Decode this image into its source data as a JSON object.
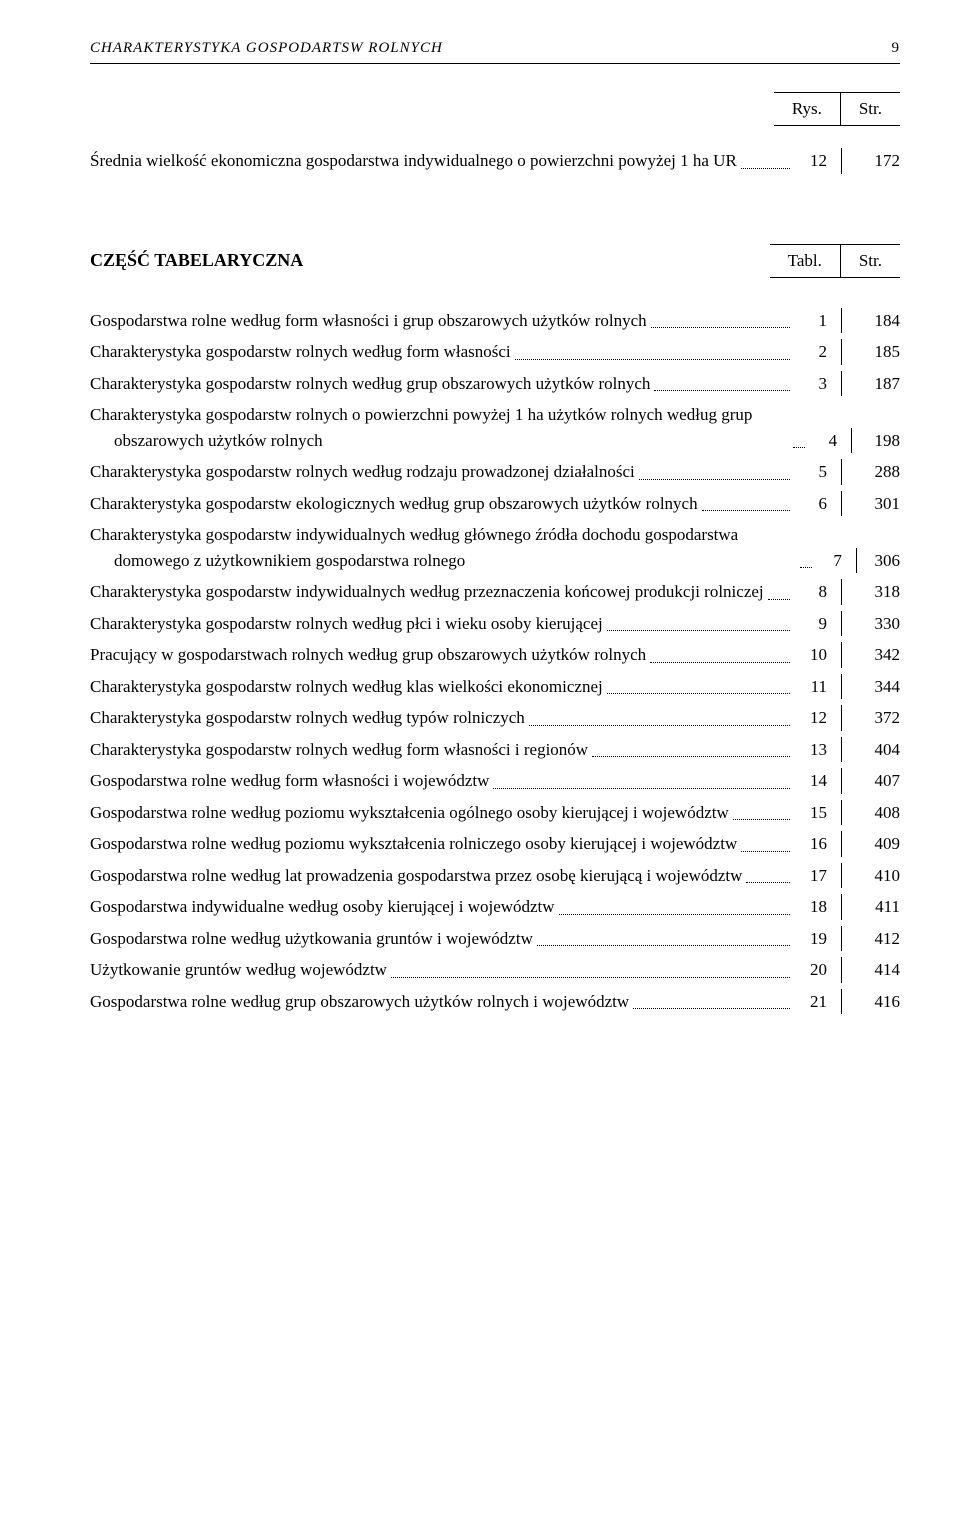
{
  "running_header": {
    "title": "CHARAKTERYSTYKA  GOSPODARTSW  ROLNYCH",
    "page": "9"
  },
  "section1_cols": {
    "c1": "Rys.",
    "c2": "Str."
  },
  "section1_rows": [
    {
      "text": "Średnia wielkość ekonomiczna gospodarstwa indywidualnego o powierzchni powyżej 1 ha UR",
      "c1": "12",
      "c2": "172"
    }
  ],
  "section2": {
    "heading": "CZĘŚĆ TABELARYCZNA",
    "cols": {
      "c1": "Tabl.",
      "c2": "Str."
    }
  },
  "section2_rows": [
    {
      "text": "Gospodarstwa rolne według form własności i grup obszarowych użytków rolnych",
      "c1": "1",
      "c2": "184"
    },
    {
      "text": "Charakterystyka gospodarstw rolnych według form własności",
      "c1": "2",
      "c2": "185"
    },
    {
      "text": "Charakterystyka gospodarstw rolnych według grup obszarowych użytków rolnych",
      "c1": "3",
      "c2": "187"
    },
    {
      "text": "Charakterystyka gospodarstw rolnych o powierzchni powyżej 1 ha użytków rolnych według grup obszarowych użytków rolnych",
      "c1": "4",
      "c2": "198"
    },
    {
      "text": "Charakterystyka gospodarstw rolnych według rodzaju prowadzonej działalności",
      "c1": "5",
      "c2": "288"
    },
    {
      "text": "Charakterystyka gospodarstw ekologicznych według grup obszarowych użytków rolnych",
      "c1": "6",
      "c2": "301"
    },
    {
      "text": "Charakterystyka gospodarstw indywidualnych według głównego źródła dochodu gospodarstwa domowego z użytkownikiem gospodarstwa rolnego",
      "c1": "7",
      "c2": "306"
    },
    {
      "text": "Charakterystyka gospodarstw indywidualnych według przeznaczenia końcowej produkcji rolniczej",
      "c1": "8",
      "c2": "318"
    },
    {
      "text": "Charakterystyka gospodarstw rolnych według płci i wieku osoby kierującej",
      "c1": "9",
      "c2": "330"
    },
    {
      "text": "Pracujący w gospodarstwach rolnych według grup obszarowych użytków rolnych",
      "c1": "10",
      "c2": "342"
    },
    {
      "text": "Charakterystyka gospodarstw rolnych według klas wielkości ekonomicznej",
      "c1": "11",
      "c2": "344"
    },
    {
      "text": "Charakterystyka gospodarstw rolnych według typów rolniczych",
      "c1": "12",
      "c2": "372"
    },
    {
      "text": "Charakterystyka gospodarstw rolnych według form własności i regionów",
      "c1": "13",
      "c2": "404"
    },
    {
      "text": "Gospodarstwa rolne według form własności i województw",
      "c1": "14",
      "c2": "407"
    },
    {
      "text": "Gospodarstwa rolne według poziomu wykształcenia ogólnego osoby kierującej i województw",
      "c1": "15",
      "c2": "408"
    },
    {
      "text": "Gospodarstwa rolne według poziomu wykształcenia rolniczego osoby kierującej i województw",
      "c1": "16",
      "c2": "409"
    },
    {
      "text": "Gospodarstwa rolne według lat prowadzenia gospodarstwa przez osobę kierującą i województw",
      "c1": "17",
      "c2": "410"
    },
    {
      "text": "Gospodarstwa indywidualne według osoby kierującej i województw",
      "c1": "18",
      "c2": "411"
    },
    {
      "text": "Gospodarstwa rolne według użytkowania gruntów i województw",
      "c1": "19",
      "c2": "412"
    },
    {
      "text": "Użytkowanie gruntów według województw",
      "c1": "20",
      "c2": "414"
    },
    {
      "text": "Gospodarstwa rolne według grup obszarowych użytków rolnych i województw",
      "c1": "21",
      "c2": "416"
    }
  ]
}
